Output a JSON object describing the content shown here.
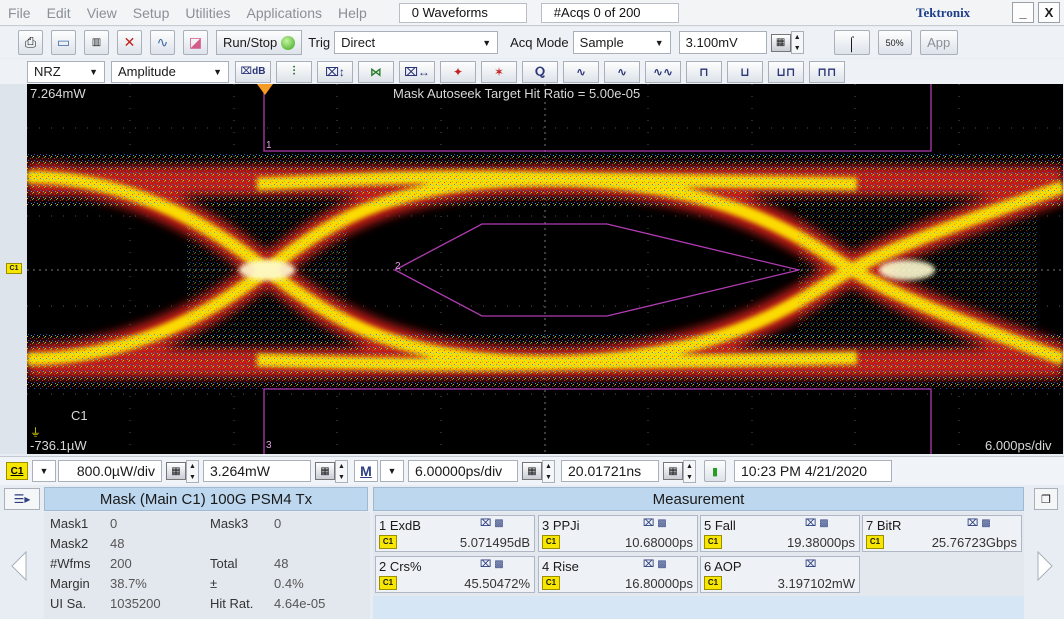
{
  "menu": [
    "File",
    "Edit",
    "View",
    "Setup",
    "Utilities",
    "Applications",
    "Help"
  ],
  "status": {
    "waveforms": "0 Waveforms",
    "acqs": "#Acqs  0 of 200"
  },
  "brand": "Tektronix",
  "window": {
    "minimize": "_",
    "close": "X"
  },
  "toolbar1": {
    "run_stop": "Run/Stop",
    "trig_label": "Trig",
    "trig_value": "Direct",
    "acq_mode_label": "Acq Mode",
    "acq_mode_value": "Sample",
    "level_value": "3.100mV",
    "app_label": "App"
  },
  "toolbar2": {
    "signal_type": "NRZ",
    "view_mode": "Amplitude"
  },
  "display": {
    "top_ref": "7.264mW",
    "bottom_ref": "-736.1µW",
    "annotation": "Mask Autoseek Target Hit Ratio = 5.00e-05",
    "channel": "C1",
    "timebase": "6.000ps/div",
    "mask_labels": [
      "1",
      "2",
      "3"
    ],
    "ch_marker": "C1"
  },
  "controls": {
    "channel": "C1",
    "vertical_scale": "800.0µW/div",
    "vertical_offset": "3.264mW",
    "math": "M",
    "horizontal_scale": "6.00000ps/div",
    "horizontal_position": "20.01721ns",
    "datetime": "10:23 PM 4/21/2020"
  },
  "mask_panel": {
    "title": "Mask (Main  C1) 100G PSM4 Tx",
    "rows": [
      {
        "k1": "Mask1",
        "v1": "0",
        "k2": "Mask3",
        "v2": "0"
      },
      {
        "k1": "Mask2",
        "v1": "48",
        "k2": "",
        "v2": ""
      },
      {
        "k1": "#Wfms",
        "v1": "200",
        "k2": "Total",
        "v2": "48"
      },
      {
        "k1": "Margin",
        "v1": "38.7%",
        "k2": "±",
        "v2": "0.4%"
      },
      {
        "k1": "UI Sa.",
        "v1": "1035200",
        "k2": "Hit Rat.",
        "v2": "4.64e-05"
      }
    ]
  },
  "measurements": {
    "title": "Measurement",
    "items": [
      {
        "name": "1 ExdB",
        "source": "C1",
        "value": "5.071495dB"
      },
      {
        "name": "3 PPJi",
        "source": "C1",
        "value": "10.68000ps"
      },
      {
        "name": "5 Fall",
        "source": "C1",
        "value": "19.38000ps"
      },
      {
        "name": "7 BitR",
        "source": "C1",
        "value": "25.76723Gbps"
      },
      {
        "name": "2 Crs%",
        "source": "C1",
        "value": "45.50472%"
      },
      {
        "name": "4 Rise",
        "source": "C1",
        "value": "16.80000ps"
      },
      {
        "name": "6 AOP",
        "source": "C1",
        "value": "3.197102mW"
      }
    ]
  },
  "colors": {
    "trace_yellow": "#ffe600",
    "trace_red": "#e0201a",
    "mask_outline": "#b03bb0",
    "channel_badge": "#f6e600",
    "header_blue": "#bcd7ee"
  }
}
